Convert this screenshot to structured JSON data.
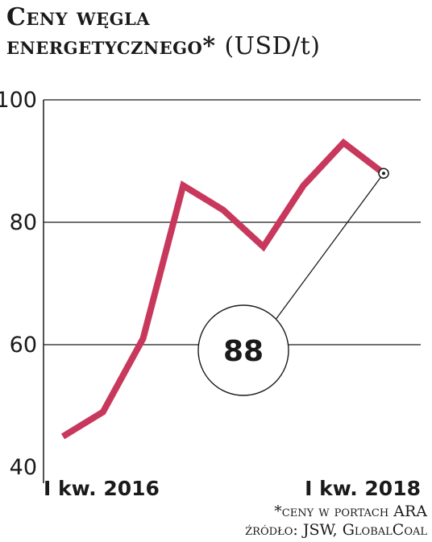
{
  "header": {
    "title_line1": "Ceny węgla",
    "title_line2": "energetycznego*",
    "unit": "(USD/t)"
  },
  "chart_data": {
    "type": "line",
    "title": "Ceny węgla energetycznego* (USD/t)",
    "xlabel": "",
    "ylabel": "",
    "ylim": [
      40,
      100
    ],
    "yticks": [
      40,
      60,
      80,
      100
    ],
    "xtick_labels": [
      {
        "x": 0,
        "label": "I kw. 2016"
      },
      {
        "x": 8,
        "label": "I kw. 2018"
      }
    ],
    "series": [
      {
        "values": [
          45,
          49,
          61,
          86,
          82,
          76,
          86,
          93,
          88
        ],
        "color": "#c8385c"
      }
    ],
    "grid": "horizontal",
    "callout": {
      "label": "88",
      "point_index": 8
    }
  },
  "footnotes": {
    "note": "*ceny w portach ARA",
    "source": "źródło: JSW, GlobalCoal"
  }
}
